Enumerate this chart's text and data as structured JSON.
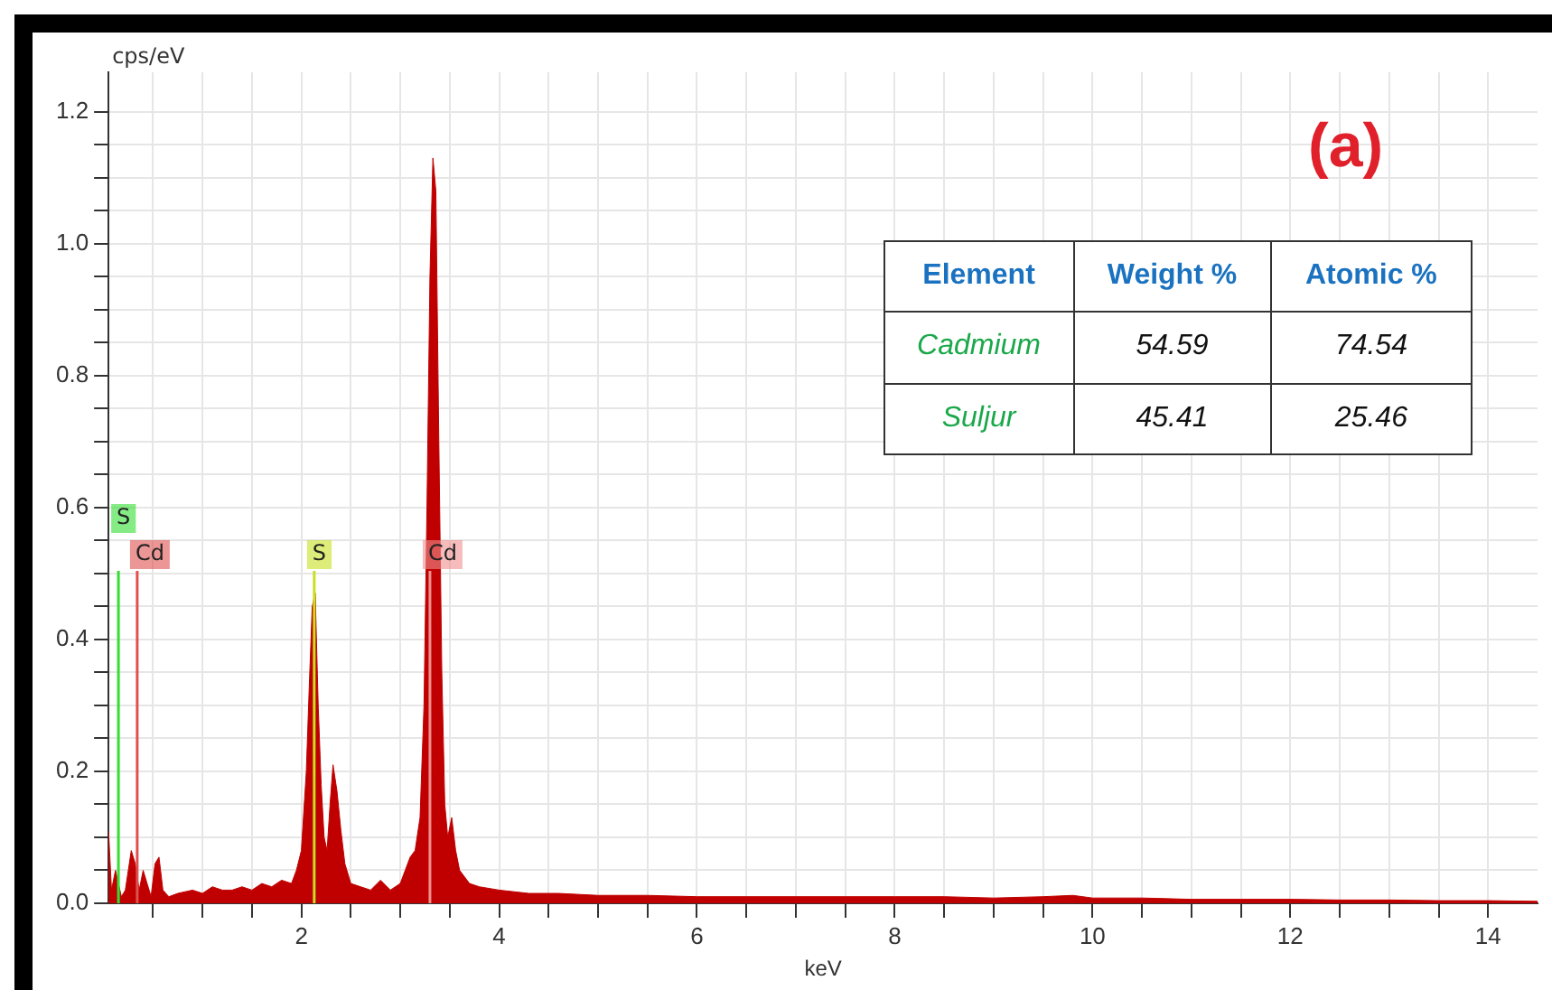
{
  "chart_data": {
    "type": "area",
    "xlabel": "keV",
    "ylabel": "cps/eV",
    "legend": false,
    "grid": true,
    "marker": "none",
    "annotations": [
      "(a)",
      "Element",
      "Weight %",
      "Atomic %",
      "Cadmium",
      "54.59",
      "74.54",
      "Suljur",
      "45.41",
      "25.46"
    ],
    "xlim": [
      0.05,
      14.5
    ],
    "xticks": [
      {
        "value": 0.5,
        "label": null
      },
      {
        "value": 1,
        "label": null
      },
      {
        "value": 1.5,
        "label": null
      },
      2,
      {
        "value": 2.5,
        "label": null
      },
      {
        "value": 3,
        "label": null
      },
      {
        "value": 3.5,
        "label": null
      },
      4,
      {
        "value": 4.5,
        "label": null
      },
      {
        "value": 5,
        "label": null
      },
      {
        "value": 5.5,
        "label": null
      },
      6,
      {
        "value": 6.5,
        "label": null
      },
      {
        "value": 7,
        "label": null
      },
      {
        "value": 7.5,
        "label": null
      },
      8,
      {
        "value": 8.5,
        "label": null
      },
      {
        "value": 9,
        "label": null
      },
      {
        "value": 9.5,
        "label": null
      },
      10,
      {
        "value": 10.5,
        "label": null
      },
      {
        "value": 11,
        "label": null
      },
      {
        "value": 11.5,
        "label": null
      },
      12,
      {
        "value": 12.5,
        "label": null
      },
      {
        "value": 13,
        "label": null
      },
      {
        "value": 13.5,
        "label": null
      },
      14
    ],
    "ylim": [
      0,
      1.26
    ],
    "yticks": [
      {
        "value": 0,
        "label": "0.0"
      },
      {
        "value": 0.05,
        "label": null
      },
      {
        "value": 0.1,
        "label": null
      },
      {
        "value": 0.15,
        "label": null
      },
      {
        "value": 0.2,
        "label": "0.2"
      },
      {
        "value": 0.25,
        "label": null
      },
      {
        "value": 0.3,
        "label": null
      },
      {
        "value": 0.35,
        "label": null
      },
      {
        "value": 0.4,
        "label": "0.4"
      },
      {
        "value": 0.45,
        "label": null
      },
      {
        "value": 0.5,
        "label": null
      },
      {
        "value": 0.55,
        "label": null
      },
      {
        "value": 0.6,
        "label": "0.6"
      },
      {
        "value": 0.65,
        "label": null
      },
      {
        "value": 0.7,
        "label": null
      },
      {
        "value": 0.75,
        "label": null
      },
      {
        "value": 0.8,
        "label": "0.8"
      },
      {
        "value": 0.85,
        "label": null
      },
      {
        "value": 0.9,
        "label": null
      },
      {
        "value": 0.95,
        "label": null
      },
      {
        "value": 1,
        "label": "1.0"
      },
      {
        "value": 1.05,
        "label": null
      },
      {
        "value": 1.1,
        "label": null
      },
      {
        "value": 1.15,
        "label": null
      },
      {
        "value": 1.2,
        "label": "1.2"
      }
    ],
    "ref_lines": [
      {
        "axis": "x",
        "value": 0.15,
        "label": "S",
        "color": "#33dd33"
      },
      {
        "axis": "x",
        "value": 0.34,
        "label": "Cd",
        "color": "#e05050"
      },
      {
        "axis": "x",
        "value": 2.13,
        "label": "S",
        "color": "#c8e020"
      },
      {
        "axis": "x",
        "value": 3.3,
        "label": "Cd",
        "color": "#f09090"
      }
    ],
    "series": [
      {
        "color": "#c00000",
        "x": [
          0.05,
          0.08,
          0.12,
          0.18,
          0.22,
          0.28,
          0.32,
          0.36,
          0.4,
          0.44,
          0.48,
          0.52,
          0.56,
          0.6,
          0.66,
          0.75,
          0.9,
          1.0,
          1.1,
          1.2,
          1.3,
          1.4,
          1.5,
          1.6,
          1.7,
          1.8,
          1.9,
          1.95,
          2.0,
          2.05,
          2.08,
          2.11,
          2.14,
          2.17,
          2.2,
          2.23,
          2.26,
          2.29,
          2.32,
          2.36,
          2.4,
          2.44,
          2.5,
          2.6,
          2.7,
          2.8,
          2.9,
          3.0,
          3.05,
          3.1,
          3.15,
          3.2,
          3.24,
          3.27,
          3.3,
          3.33,
          3.36,
          3.39,
          3.42,
          3.45,
          3.48,
          3.52,
          3.56,
          3.6,
          3.7,
          3.8,
          4.0,
          4.3,
          4.6,
          5.0,
          5.5,
          6.0,
          6.5,
          7.0,
          7.5,
          8.0,
          8.5,
          9.0,
          9.5,
          9.8,
          10.0,
          10.5,
          11.0,
          11.5,
          12.0,
          12.5,
          13.0,
          13.5,
          14.0,
          14.5
        ],
        "values": [
          0.11,
          0.02,
          0.05,
          0.01,
          0.02,
          0.08,
          0.06,
          0.02,
          0.05,
          0.03,
          0.01,
          0.06,
          0.07,
          0.02,
          0.01,
          0.015,
          0.02,
          0.015,
          0.025,
          0.02,
          0.02,
          0.025,
          0.02,
          0.03,
          0.025,
          0.035,
          0.03,
          0.05,
          0.08,
          0.2,
          0.33,
          0.45,
          0.47,
          0.3,
          0.18,
          0.1,
          0.08,
          0.15,
          0.21,
          0.17,
          0.11,
          0.06,
          0.03,
          0.025,
          0.02,
          0.035,
          0.02,
          0.03,
          0.05,
          0.07,
          0.08,
          0.13,
          0.3,
          0.6,
          0.95,
          1.13,
          1.08,
          0.7,
          0.35,
          0.15,
          0.1,
          0.13,
          0.08,
          0.05,
          0.03,
          0.025,
          0.02,
          0.015,
          0.015,
          0.012,
          0.012,
          0.01,
          0.01,
          0.01,
          0.01,
          0.01,
          0.01,
          0.008,
          0.01,
          0.012,
          0.008,
          0.008,
          0.006,
          0.006,
          0.006,
          0.005,
          0.005,
          0.004,
          0.004,
          0.003
        ]
      }
    ]
  }
}
